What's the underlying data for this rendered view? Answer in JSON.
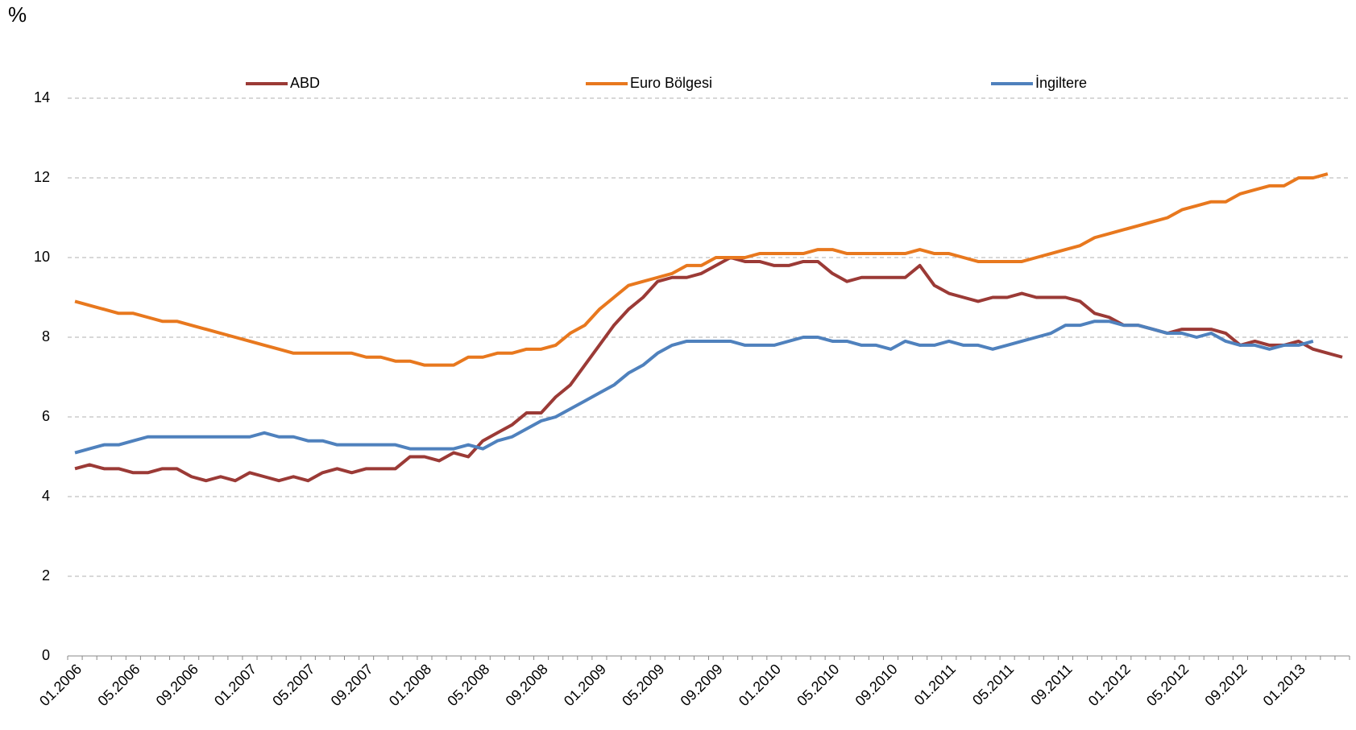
{
  "chart_data": {
    "type": "line",
    "y_label": "%",
    "categories": [
      "01.2006",
      null,
      null,
      null,
      "05.2006",
      null,
      null,
      null,
      "09.2006",
      null,
      null,
      null,
      "01.2007",
      null,
      null,
      null,
      "05.2007",
      null,
      null,
      null,
      "09.2007",
      null,
      null,
      null,
      "01.2008",
      null,
      null,
      null,
      "05.2008",
      null,
      null,
      null,
      "09.2008",
      null,
      null,
      null,
      "01.2009",
      null,
      null,
      null,
      "05.2009",
      null,
      null,
      null,
      "09.2009",
      null,
      null,
      null,
      "01.2010",
      null,
      null,
      null,
      "05.2010",
      null,
      null,
      null,
      "09.2010",
      null,
      null,
      null,
      "01.2011",
      null,
      null,
      null,
      "05.2011",
      null,
      null,
      null,
      "09.2011",
      null,
      null,
      null,
      "01.2012",
      null,
      null,
      null,
      "05.2012",
      null,
      null,
      null,
      "09.2012",
      null,
      null,
      null,
      "01.2013",
      null,
      null,
      null
    ],
    "series": [
      {
        "name": "ABD",
        "color": "#9b3a36",
        "values": [
          4.7,
          4.8,
          4.7,
          4.7,
          4.6,
          4.6,
          4.7,
          4.7,
          4.5,
          4.4,
          4.5,
          4.4,
          4.6,
          4.5,
          4.4,
          4.5,
          4.4,
          4.6,
          4.7,
          4.6,
          4.7,
          4.7,
          4.7,
          5.0,
          5.0,
          4.9,
          5.1,
          5.0,
          5.4,
          5.6,
          5.8,
          6.1,
          6.1,
          6.5,
          6.8,
          7.3,
          7.8,
          8.3,
          8.7,
          9.0,
          9.4,
          9.5,
          9.5,
          9.6,
          9.8,
          10.0,
          9.9,
          9.9,
          9.8,
          9.8,
          9.9,
          9.9,
          9.6,
          9.4,
          9.5,
          9.5,
          9.5,
          9.5,
          9.8,
          9.3,
          9.1,
          9.0,
          8.9,
          9.0,
          9.0,
          9.1,
          9.0,
          9.0,
          9.0,
          8.9,
          8.6,
          8.5,
          8.3,
          8.3,
          8.2,
          8.1,
          8.2,
          8.2,
          8.2,
          8.1,
          7.8,
          7.9,
          7.8,
          7.8,
          7.9,
          7.7,
          7.6,
          7.5
        ]
      },
      {
        "name": "Euro Bölgesi",
        "color": "#e8781e",
        "values": [
          8.9,
          8.8,
          8.7,
          8.6,
          8.6,
          8.5,
          8.4,
          8.4,
          8.3,
          8.2,
          8.1,
          8.0,
          7.9,
          7.8,
          7.7,
          7.6,
          7.6,
          7.6,
          7.6,
          7.6,
          7.5,
          7.5,
          7.4,
          7.4,
          7.3,
          7.3,
          7.3,
          7.5,
          7.5,
          7.6,
          7.6,
          7.7,
          7.7,
          7.8,
          8.1,
          8.3,
          8.7,
          9.0,
          9.3,
          9.4,
          9.5,
          9.6,
          9.8,
          9.8,
          10.0,
          10.0,
          10.0,
          10.1,
          10.1,
          10.1,
          10.1,
          10.2,
          10.2,
          10.1,
          10.1,
          10.1,
          10.1,
          10.1,
          10.2,
          10.1,
          10.1,
          10.0,
          9.9,
          9.9,
          9.9,
          9.9,
          10.0,
          10.1,
          10.2,
          10.3,
          10.5,
          10.6,
          10.7,
          10.8,
          10.9,
          11.0,
          11.2,
          11.3,
          11.4,
          11.4,
          11.6,
          11.7,
          11.8,
          11.8,
          12.0,
          12.0,
          12.1,
          null
        ]
      },
      {
        "name": "İngiltere",
        "color": "#4f81bd",
        "values": [
          5.1,
          5.2,
          5.3,
          5.3,
          5.4,
          5.5,
          5.5,
          5.5,
          5.5,
          5.5,
          5.5,
          5.5,
          5.5,
          5.6,
          5.5,
          5.5,
          5.4,
          5.4,
          5.3,
          5.3,
          5.3,
          5.3,
          5.3,
          5.2,
          5.2,
          5.2,
          5.2,
          5.3,
          5.2,
          5.4,
          5.5,
          5.7,
          5.9,
          6.0,
          6.2,
          6.4,
          6.6,
          6.8,
          7.1,
          7.3,
          7.6,
          7.8,
          7.9,
          7.9,
          7.9,
          7.9,
          7.8,
          7.8,
          7.8,
          7.9,
          8.0,
          8.0,
          7.9,
          7.9,
          7.8,
          7.8,
          7.7,
          7.9,
          7.8,
          7.8,
          7.9,
          7.8,
          7.8,
          7.7,
          7.8,
          7.9,
          8.0,
          8.1,
          8.3,
          8.3,
          8.4,
          8.4,
          8.3,
          8.3,
          8.2,
          8.1,
          8.1,
          8.0,
          8.1,
          7.9,
          7.8,
          7.8,
          7.7,
          7.8,
          7.8,
          7.9,
          null,
          null
        ]
      }
    ],
    "ylim": [
      0,
      14
    ],
    "yticks": [
      0,
      2,
      4,
      6,
      8,
      10,
      12,
      14
    ],
    "grid": true,
    "legend": "top"
  }
}
